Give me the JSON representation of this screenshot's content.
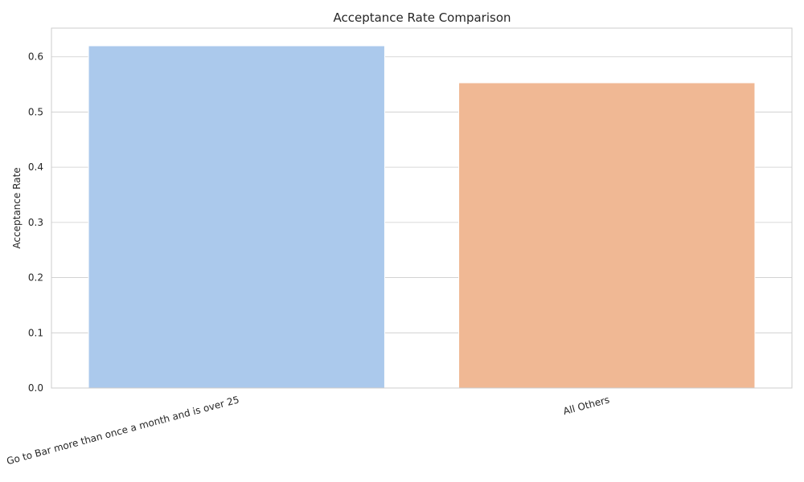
{
  "chart_data": {
    "type": "bar",
    "title": "Acceptance Rate Comparison",
    "xlabel": "",
    "ylabel": "Acceptance Rate",
    "categories": [
      "Go to Bar more than once a month and is over 25",
      "All Others"
    ],
    "values": [
      0.62,
      0.553
    ],
    "colors": [
      "#abc9ec",
      "#f0b894"
    ],
    "ylim": [
      0,
      0.652
    ],
    "yticks": [
      "0.0",
      "0.1",
      "0.2",
      "0.3",
      "0.4",
      "0.5",
      "0.6"
    ],
    "grid": true,
    "legend": "none"
  }
}
